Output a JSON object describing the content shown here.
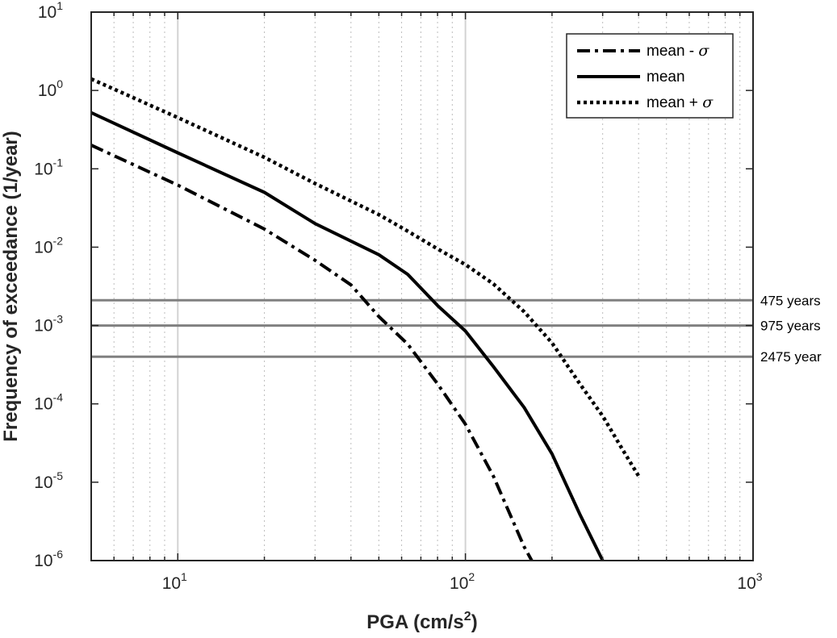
{
  "chart_data": {
    "type": "line",
    "xscale": "log",
    "yscale": "log",
    "xlim": [
      5,
      1000
    ],
    "ylim": [
      1e-06,
      10
    ],
    "xlabel": "PGA (cm/s",
    "xlabel_sup": "2",
    "xlabel_suffix": ")",
    "ylabel": "Frequency of exceedance (1/year)",
    "grid": true,
    "legend_position": "top-right",
    "x_ticks": [
      {
        "value": 10,
        "base": "10",
        "exp": "1"
      },
      {
        "value": 100,
        "base": "10",
        "exp": "2"
      },
      {
        "value": 1000,
        "base": "10",
        "exp": "3"
      }
    ],
    "y_ticks": [
      {
        "value": 10,
        "base": "10",
        "exp": "1"
      },
      {
        "value": 1,
        "base": "10",
        "exp": "0"
      },
      {
        "value": 0.1,
        "base": "10",
        "exp": "-1"
      },
      {
        "value": 0.01,
        "base": "10",
        "exp": "-2"
      },
      {
        "value": 0.001,
        "base": "10",
        "exp": "-3"
      },
      {
        "value": 0.0001,
        "base": "10",
        "exp": "-4"
      },
      {
        "value": 1e-05,
        "base": "10",
        "exp": "-5"
      },
      {
        "value": 1e-06,
        "base": "10",
        "exp": "-6"
      }
    ],
    "series": [
      {
        "name": "mean - ",
        "name_symbol": "σ",
        "style": "dashdot",
        "x": [
          5,
          10,
          20,
          30,
          40,
          50,
          63,
          80,
          100,
          125,
          160,
          170
        ],
        "y": [
          0.2,
          0.062,
          0.017,
          0.0068,
          0.0033,
          0.0013,
          0.00058,
          0.00018,
          5.5e-05,
          1.2e-05,
          1.5e-06,
          1e-06
        ]
      },
      {
        "name": "mean",
        "name_symbol": "",
        "style": "solid",
        "x": [
          5,
          10,
          20,
          30,
          50,
          63,
          80,
          100,
          125,
          160,
          200,
          250,
          300
        ],
        "y": [
          0.52,
          0.16,
          0.05,
          0.02,
          0.008,
          0.0045,
          0.0018,
          0.00085,
          0.0003,
          9e-05,
          2.3e-05,
          3.9e-06,
          1e-06
        ]
      },
      {
        "name": "mean + ",
        "name_symbol": "σ",
        "style": "dotted",
        "x": [
          5,
          10,
          20,
          30,
          50,
          63,
          80,
          100,
          125,
          160,
          200,
          250,
          300,
          350,
          400
        ],
        "y": [
          1.4,
          0.45,
          0.14,
          0.065,
          0.026,
          0.016,
          0.0095,
          0.006,
          0.0034,
          0.0015,
          0.0006,
          0.00018,
          7e-05,
          2.7e-05,
          1.2e-05
        ]
      }
    ],
    "reference_lines": [
      {
        "y": 0.0021,
        "label": "475 years"
      },
      {
        "y": 0.001,
        "label": "975 years"
      },
      {
        "y": 0.0004,
        "label": "2475 year"
      }
    ],
    "colors": {
      "series": "#000000",
      "reference": "#808080",
      "grid_major": "#d3d3d3",
      "grid_minor": "#bdbdbd",
      "axis": "#262626"
    }
  }
}
